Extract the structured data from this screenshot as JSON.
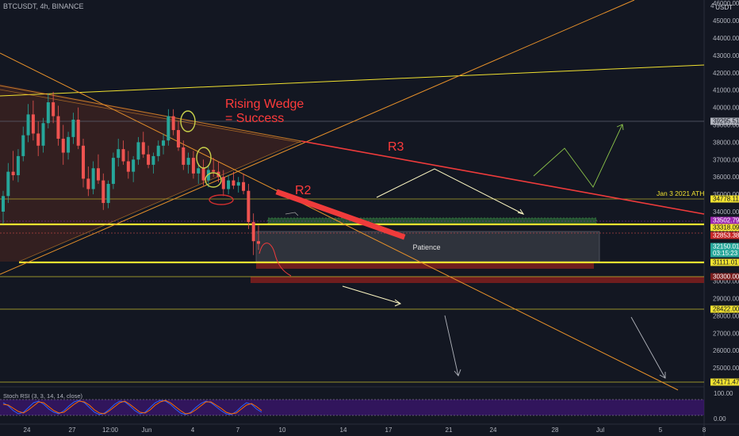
{
  "header": {
    "symbol_line": "BTCUSDT, 4h, BINANCE",
    "currency": "USDT"
  },
  "chart_data": {
    "type": "candlestick",
    "y_axis": {
      "min": 24000,
      "max": 47000,
      "ticks": [
        25000,
        26000,
        27000,
        28000,
        29000,
        30000,
        31000,
        32000,
        33000,
        34000,
        35000,
        36000,
        37000,
        38000,
        39000,
        40000,
        41000,
        42000,
        43000,
        44000,
        45000,
        46000
      ],
      "top_label": "4"
    },
    "x_axis": {
      "labels": [
        "24",
        "27",
        "12:00",
        "Jun",
        "4",
        "7",
        "10",
        "14",
        "17",
        "21",
        "24",
        "28",
        "Jul",
        "5",
        "8"
      ]
    },
    "price_labels": [
      {
        "value": 39295.51,
        "text": "39295.51",
        "style": "gray"
      },
      {
        "value": 34778.11,
        "text": "34778.11",
        "style": "yellow"
      },
      {
        "value": 33502.79,
        "text": "33502.79",
        "style": "purple"
      },
      {
        "value": 33318.09,
        "text": "33318.09",
        "style": "yellow"
      },
      {
        "value": 32853.38,
        "text": "32853.38",
        "style": "red"
      },
      {
        "value": 32150.01,
        "text": "32150.01",
        "style": "green"
      },
      {
        "value": 31111.01,
        "text": "31111.01",
        "style": "yellow"
      },
      {
        "value": 30300.0,
        "text": "30300.00",
        "style": "darkred"
      },
      {
        "value": 28422.0,
        "text": "28422.00",
        "style": "yellow"
      },
      {
        "value": 24171.47,
        "text": "24171.47",
        "style": "yellow"
      }
    ],
    "countdown": "03:15:23",
    "annotations": {
      "rising_wedge_line1": "Rising Wedge",
      "rising_wedge_line2": "= Success",
      "r2": "R2",
      "r3": "R3",
      "ath": "Jan 3 2021 ATH",
      "patience": "Patience"
    },
    "candles": [
      [
        34000,
        35200,
        33300,
        34900
      ],
      [
        34900,
        36800,
        34500,
        36300
      ],
      [
        36300,
        37500,
        35800,
        36100
      ],
      [
        36100,
        37600,
        35700,
        37200
      ],
      [
        37200,
        38900,
        36900,
        38400
      ],
      [
        38400,
        40200,
        38000,
        39600
      ],
      [
        39600,
        40400,
        38100,
        38500
      ],
      [
        38500,
        39200,
        37200,
        37800
      ],
      [
        37800,
        39400,
        37400,
        39100
      ],
      [
        39100,
        40800,
        38800,
        40300
      ],
      [
        40300,
        40900,
        39100,
        39500
      ],
      [
        39500,
        40100,
        37800,
        38200
      ],
      [
        38200,
        39000,
        36700,
        37400
      ],
      [
        37400,
        38600,
        37000,
        38300
      ],
      [
        38300,
        39700,
        37900,
        39300
      ],
      [
        39300,
        40000,
        37600,
        37800
      ],
      [
        37800,
        38200,
        35400,
        35900
      ],
      [
        35900,
        36600,
        34900,
        35300
      ],
      [
        35300,
        36900,
        35000,
        36500
      ],
      [
        36500,
        37300,
        35600,
        35800
      ],
      [
        35800,
        36200,
        34100,
        34500
      ],
      [
        34500,
        35800,
        34200,
        35600
      ],
      [
        35600,
        37400,
        35300,
        37100
      ],
      [
        37100,
        38200,
        36600,
        37600
      ],
      [
        37600,
        38100,
        36700,
        36900
      ],
      [
        36900,
        37500,
        35900,
        36300
      ],
      [
        36300,
        37200,
        35700,
        37000
      ],
      [
        37000,
        38300,
        36700,
        38000
      ],
      [
        38000,
        38600,
        37100,
        37300
      ],
      [
        37300,
        37800,
        36500,
        36700
      ],
      [
        36700,
        37400,
        36200,
        37200
      ],
      [
        37200,
        38100,
        36900,
        37800
      ],
      [
        37800,
        38500,
        37300,
        38100
      ],
      [
        38100,
        39900,
        37800,
        39500
      ],
      [
        39500,
        39900,
        38400,
        38700
      ],
      [
        38700,
        39200,
        37500,
        37700
      ],
      [
        37700,
        38100,
        36400,
        36700
      ],
      [
        36700,
        37400,
        36200,
        37100
      ],
      [
        37100,
        37500,
        35900,
        36200
      ],
      [
        36200,
        36800,
        35600,
        36500
      ],
      [
        36500,
        37000,
        35500,
        35800
      ],
      [
        35800,
        36700,
        35400,
        36400
      ],
      [
        36400,
        37100,
        36000,
        36300
      ],
      [
        36300,
        36900,
        35700,
        36000
      ],
      [
        36000,
        36400,
        34900,
        35300
      ],
      [
        35300,
        36100,
        35000,
        35800
      ],
      [
        35800,
        36300,
        35300,
        35500
      ],
      [
        35500,
        36000,
        35100,
        35700
      ],
      [
        35700,
        36200,
        35000,
        35200
      ],
      [
        35200,
        35600,
        33000,
        33400
      ],
      [
        33400,
        33900,
        31500,
        32300
      ],
      [
        32300,
        33200,
        31800,
        32150
      ]
    ],
    "stoch_rsi": {
      "label": "Stoch RSI (3, 3, 14, 14, close)",
      "ticks": [
        "100.00",
        "0.00"
      ],
      "k": [
        80,
        60,
        30,
        10,
        20,
        50,
        80,
        90,
        70,
        40,
        20,
        10,
        30,
        60,
        85,
        95,
        80,
        50,
        20,
        5,
        15,
        40,
        70,
        90,
        85,
        60,
        30,
        10,
        20,
        50,
        80,
        95,
        90,
        70,
        40,
        15,
        5,
        20,
        50,
        75,
        90,
        80,
        55,
        30,
        10,
        5,
        25,
        55,
        80,
        70,
        40,
        20
      ],
      "d": [
        70,
        65,
        45,
        25,
        15,
        35,
        60,
        85,
        80,
        55,
        30,
        15,
        20,
        45,
        70,
        90,
        85,
        65,
        35,
        15,
        10,
        30,
        55,
        80,
        90,
        70,
        45,
        20,
        15,
        35,
        65,
        85,
        95,
        80,
        55,
        30,
        10,
        15,
        35,
        60,
        85,
        85,
        65,
        45,
        20,
        10,
        15,
        40,
        65,
        75,
        55,
        30
      ]
    }
  },
  "colors": {
    "background": "#131722",
    "up": "#26a69a",
    "down": "#ef5350",
    "yellow": "#f0e130",
    "orange": "#e8912a",
    "red_line": "#ef3b3b",
    "grid": "#2a2e39"
  }
}
